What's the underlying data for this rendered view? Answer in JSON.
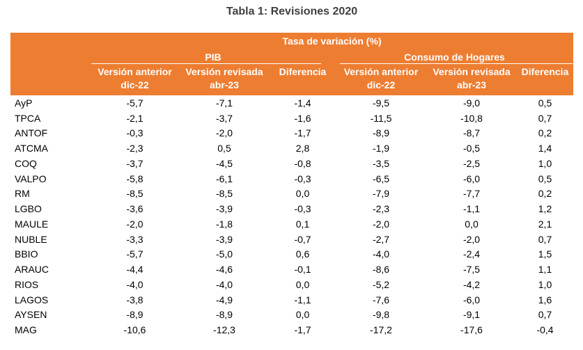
{
  "title": "Tabla 1: Revisiones 2020",
  "table": {
    "top_header": "Tasa de variación (%)",
    "groups": [
      {
        "label": "PIB"
      },
      {
        "label": "Consumo de Hogares"
      }
    ],
    "sub_headers": {
      "anterior_line1": "Versión anterior",
      "anterior_line2": "dic-22",
      "revisada_line1": "Versión revisada",
      "revisada_line2": "abr-23",
      "diferencia": "Diferencia"
    },
    "rows": [
      {
        "label": "AyP",
        "values": [
          "-5,7",
          "-7,1",
          "-1,4",
          "-9,5",
          "-9,0",
          "0,5"
        ]
      },
      {
        "label": "TPCA",
        "values": [
          "-2,1",
          "-3,7",
          "-1,6",
          "-11,5",
          "-10,8",
          "0,7"
        ]
      },
      {
        "label": "ANTOF",
        "values": [
          "-0,3",
          "-2,0",
          "-1,7",
          "-8,9",
          "-8,7",
          "0,2"
        ]
      },
      {
        "label": "ATCMA",
        "values": [
          "-2,3",
          "0,5",
          "2,8",
          "-1,9",
          "-0,5",
          "1,4"
        ]
      },
      {
        "label": "COQ",
        "values": [
          "-3,7",
          "-4,5",
          "-0,8",
          "-3,5",
          "-2,5",
          "1,0"
        ]
      },
      {
        "label": "VALPO",
        "values": [
          "-5,8",
          "-6,1",
          "-0,3",
          "-6,5",
          "-6,0",
          "0,5"
        ]
      },
      {
        "label": "RM",
        "values": [
          "-8,5",
          "-8,5",
          "0,0",
          "-7,9",
          "-7,7",
          "0,2"
        ]
      },
      {
        "label": "LGBO",
        "values": [
          "-3,6",
          "-3,9",
          "-0,3",
          "-2,3",
          "-1,1",
          "1,2"
        ]
      },
      {
        "label": "MAULE",
        "values": [
          "-2,0",
          "-1,8",
          "0,1",
          "-2,0",
          "0,0",
          "2,1"
        ]
      },
      {
        "label": "NUBLE",
        "values": [
          "-3,3",
          "-3,9",
          "-0,7",
          "-2,7",
          "-2,0",
          "0,7"
        ]
      },
      {
        "label": "BBIO",
        "values": [
          "-5,7",
          "-5,0",
          "0,6",
          "-4,0",
          "-2,4",
          "1,5"
        ]
      },
      {
        "label": "ARAUC",
        "values": [
          "-4,4",
          "-4,6",
          "-0,1",
          "-8,6",
          "-7,5",
          "1,1"
        ]
      },
      {
        "label": "RIOS",
        "values": [
          "-4,0",
          "-4,0",
          "0,0",
          "-5,2",
          "-4,2",
          "1,0"
        ]
      },
      {
        "label": "LAGOS",
        "values": [
          "-3,8",
          "-4,9",
          "-1,1",
          "-7,6",
          "-6,0",
          "1,6"
        ]
      },
      {
        "label": "AYSEN",
        "values": [
          "-8,9",
          "-8,9",
          "0,0",
          "-9,8",
          "-9,1",
          "0,7"
        ]
      },
      {
        "label": "MAG",
        "values": [
          "-10,6",
          "-12,3",
          "-1,7",
          "-17,2",
          "-17,6",
          "-0,4"
        ]
      }
    ]
  },
  "colors": {
    "header_bg": "#ED7D31",
    "header_text": "#FFFFFF",
    "body_text": "#000000",
    "title_text": "#404040"
  }
}
